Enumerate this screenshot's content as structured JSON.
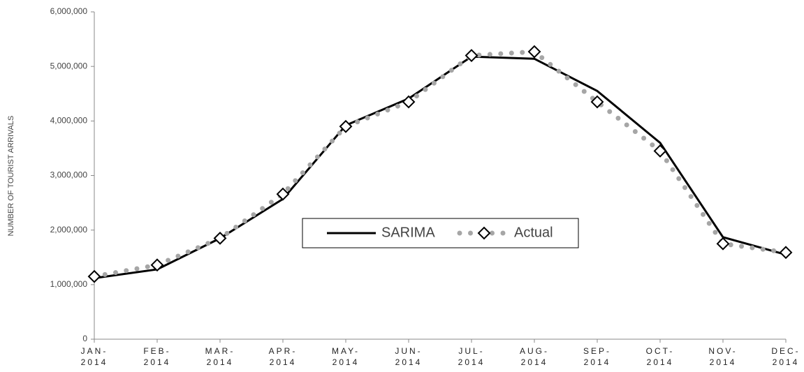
{
  "chart_data": {
    "type": "line",
    "y_label": "NUMBER OF TOURIST ARRIVALS",
    "categories": [
      "JAN-\n2014",
      "FEB-\n2014",
      "MAR-\n2014",
      "APR-\n2014",
      "MAY-\n2014",
      "JUN-\n2014",
      "JUL-\n2014",
      "AUG-\n2014",
      "SEP-\n2014",
      "OCT-\n2014",
      "NOV-\n2014",
      "DEC-\n2014"
    ],
    "series": [
      {
        "name": "SARIMA",
        "color": "#000000",
        "style": "solid",
        "values": [
          1120000,
          1280000,
          1850000,
          2570000,
          3920000,
          4410000,
          5180000,
          5140000,
          4550000,
          3600000,
          1870000,
          1550000
        ]
      },
      {
        "name": "Actual",
        "color": "#a6a6a6",
        "style": "dotted-diamond",
        "values": [
          1150000,
          1360000,
          1850000,
          2660000,
          3900000,
          4350000,
          5200000,
          5270000,
          4350000,
          3450000,
          1750000,
          1590000
        ]
      }
    ],
    "ylim": [
      0,
      6000000
    ],
    "yticks": [
      0,
      {
        "value": 1000000,
        "label": "1,000,000"
      },
      {
        "value": 2000000,
        "label": "2,000,000"
      },
      {
        "value": 3000000,
        "label": "3,000,000"
      },
      {
        "value": 4000000,
        "label": "4,000,000"
      },
      {
        "value": 5000000,
        "label": "5,000,000"
      },
      {
        "value": 6000000,
        "label": "6,000,000"
      }
    ],
    "grid": false,
    "legend": "center"
  }
}
